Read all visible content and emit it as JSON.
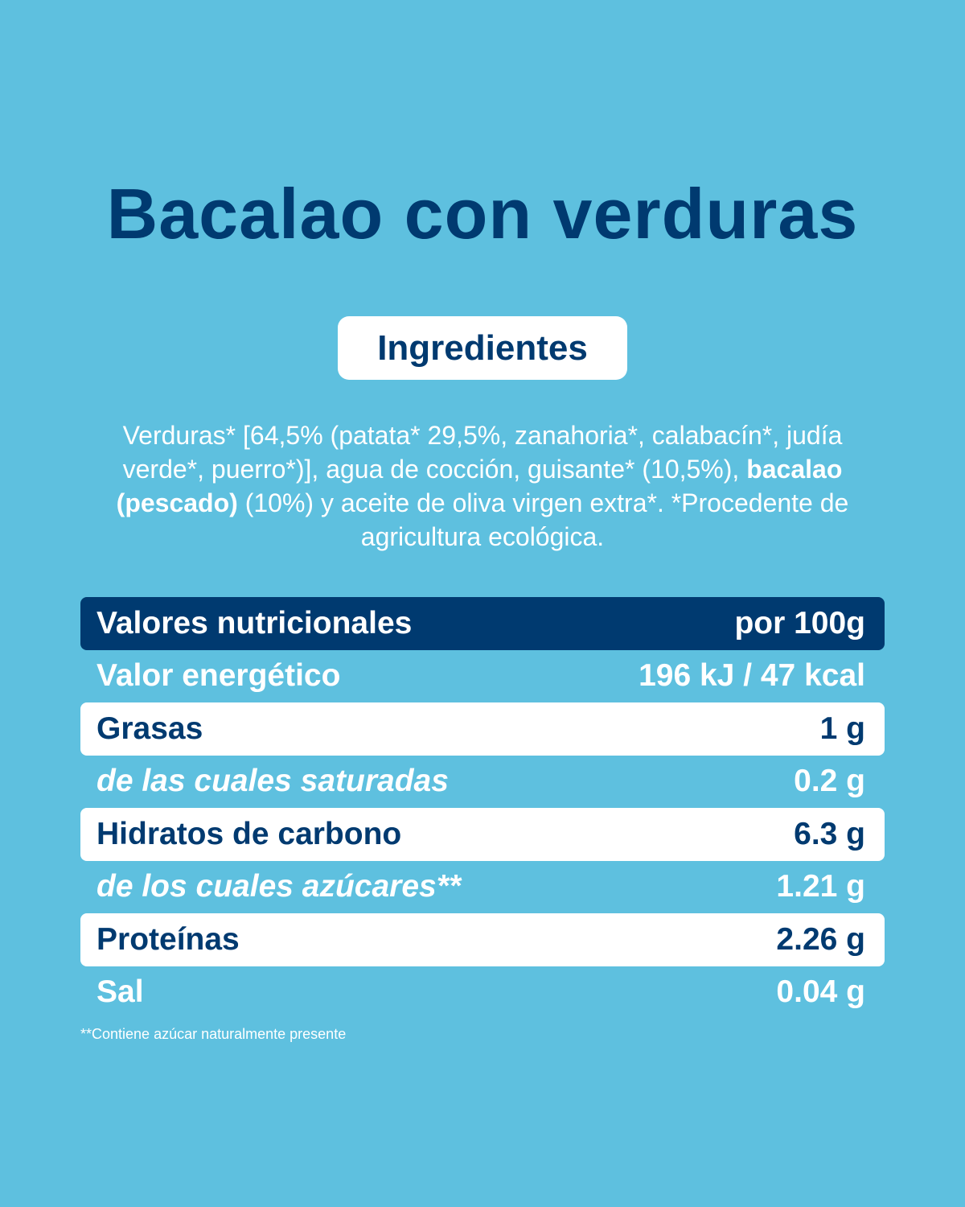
{
  "title": "Bacalao con verduras",
  "ingredients": {
    "heading": "Ingredientes",
    "text_before": "Verduras* [64,5% (patata* 29,5%, zanahoria*, calabacín*, judía verde*, puerro*)], agua de cocción, guisante* (10,5%),",
    "text_bold": "bacalao (pescado)",
    "text_after": "(10%) y aceite de oliva virgen extra*. *Procedente de agricultura ecológica."
  },
  "nutrition": {
    "header": [
      "Valores nutricionales",
      "por 100g"
    ],
    "rows": [
      [
        "Valor energético",
        "196 kJ / 47 kcal"
      ],
      [
        "Grasas",
        "1 g"
      ],
      [
        "de las cuales saturadas",
        "0.2 g"
      ],
      [
        "Hidratos de carbono",
        "6.3 g"
      ],
      [
        "de los cuales azúcares**",
        "1.21 g"
      ],
      [
        "Proteínas",
        "2.26 g"
      ],
      [
        "Sal",
        "0.04 g"
      ]
    ]
  },
  "footnote": "**Contiene azúcar naturalmente presente"
}
